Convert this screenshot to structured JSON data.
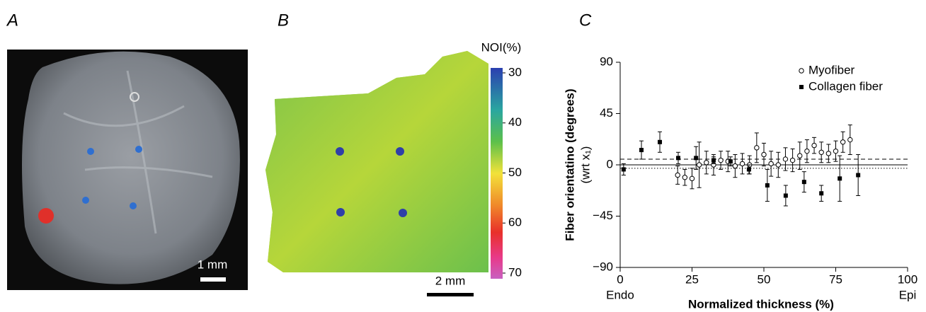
{
  "panel_a": {
    "label": "A",
    "scale_bar": "1 mm"
  },
  "panel_b": {
    "label": "B",
    "scale_bar": "2 mm",
    "colorbar": {
      "title": "NOI(%)",
      "lim": [
        30,
        70
      ],
      "ticks": [
        30,
        40,
        50,
        60,
        70
      ]
    }
  },
  "chart_data": {
    "type": "scatter",
    "panel_label": "C",
    "xlabel": "Normalized thickness (%)",
    "ylabel": "Fiber orientatino (degrees)",
    "ylabel_sub": "(wrt x₁)",
    "x_end_labels": [
      "Endo",
      "Epi"
    ],
    "xlim": [
      0,
      100
    ],
    "xticks": [
      0,
      25,
      50,
      75,
      100
    ],
    "ylim": [
      -90,
      90
    ],
    "yticks": [
      {
        "value": -90,
        "label": "−90"
      },
      {
        "value": -45,
        "label": "−45"
      },
      0,
      45,
      90
    ],
    "reference_lines": [
      {
        "value": 0,
        "style": "solid"
      },
      {
        "value": 5,
        "style": "dashed"
      },
      {
        "value": -3,
        "style": "dotted"
      }
    ],
    "series": [
      {
        "name": "Myofiber",
        "color": "#000000",
        "marker": "open-circle",
        "x": [
          20,
          22.5,
          25,
          27.5,
          30,
          32.5,
          35,
          37.5,
          40,
          42.5,
          45,
          47.5,
          50,
          52.5,
          55,
          57.5,
          60,
          62.5,
          65,
          67.5,
          70,
          72.5,
          75,
          77.5,
          80
        ],
        "values": [
          -9,
          -11,
          -12,
          0,
          2,
          0,
          4,
          3,
          -1,
          1,
          0,
          15,
          9,
          1,
          0,
          5,
          4,
          8,
          12,
          17,
          11,
          10,
          12,
          20,
          22
        ],
        "errors": [
          8,
          7,
          9,
          20,
          10,
          9,
          8,
          9,
          10,
          9,
          8,
          13,
          10,
          11,
          11,
          10,
          10,
          12,
          10,
          7,
          9,
          8,
          9,
          9,
          13
        ]
      },
      {
        "name": "Collagen fiber",
        "color": "#000000",
        "marker": "square",
        "x": [
          1.2,
          7.4,
          13.8,
          20.2,
          26.4,
          32.5,
          38.4,
          44.8,
          51.2,
          57.6,
          64,
          70,
          76.4,
          82.8
        ],
        "values": [
          -4,
          13,
          20,
          6,
          6,
          4,
          3,
          -4,
          -18,
          -27,
          -15,
          -25,
          -12,
          -9
        ],
        "errors": [
          5,
          8,
          9,
          5,
          10,
          3,
          4,
          4,
          14,
          9,
          9,
          7,
          20,
          18
        ]
      }
    ]
  }
}
